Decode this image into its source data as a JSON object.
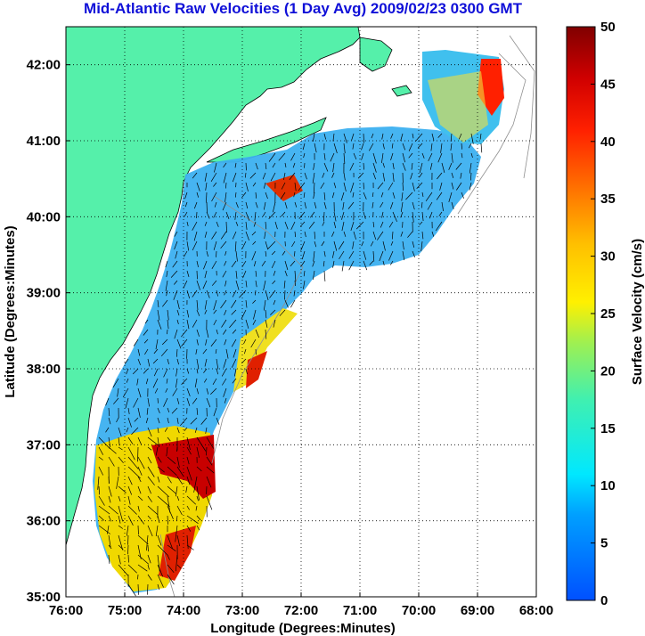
{
  "chart_data": {
    "type": "heatmap",
    "title": "Mid-Atlantic Raw Velocities (1 Day Avg) 2009/02/23 0300 GMT",
    "xlabel": "Longitude (Degrees:Minutes)",
    "ylabel": "Latitude (Degrees:Minutes)",
    "xlim": [
      -76,
      -68
    ],
    "ylim": [
      35,
      42.5
    ],
    "x_ticks": [
      "76:00",
      "75:00",
      "74:00",
      "73:00",
      "72:00",
      "71:00",
      "70:00",
      "69:00",
      "68:00"
    ],
    "y_ticks": [
      "35:00",
      "36:00",
      "37:00",
      "38:00",
      "39:00",
      "40:00",
      "41:00",
      "42:00"
    ],
    "grid": true,
    "colorbar": {
      "label": "Surface Velocity (cm/s)",
      "range": [
        0,
        50
      ],
      "ticks": [
        "0",
        "5",
        "10",
        "15",
        "20",
        "25",
        "30",
        "35",
        "40",
        "45",
        "50"
      ]
    },
    "colors": {
      "land": "#55f0aa",
      "title": "#1010d8"
    }
  }
}
